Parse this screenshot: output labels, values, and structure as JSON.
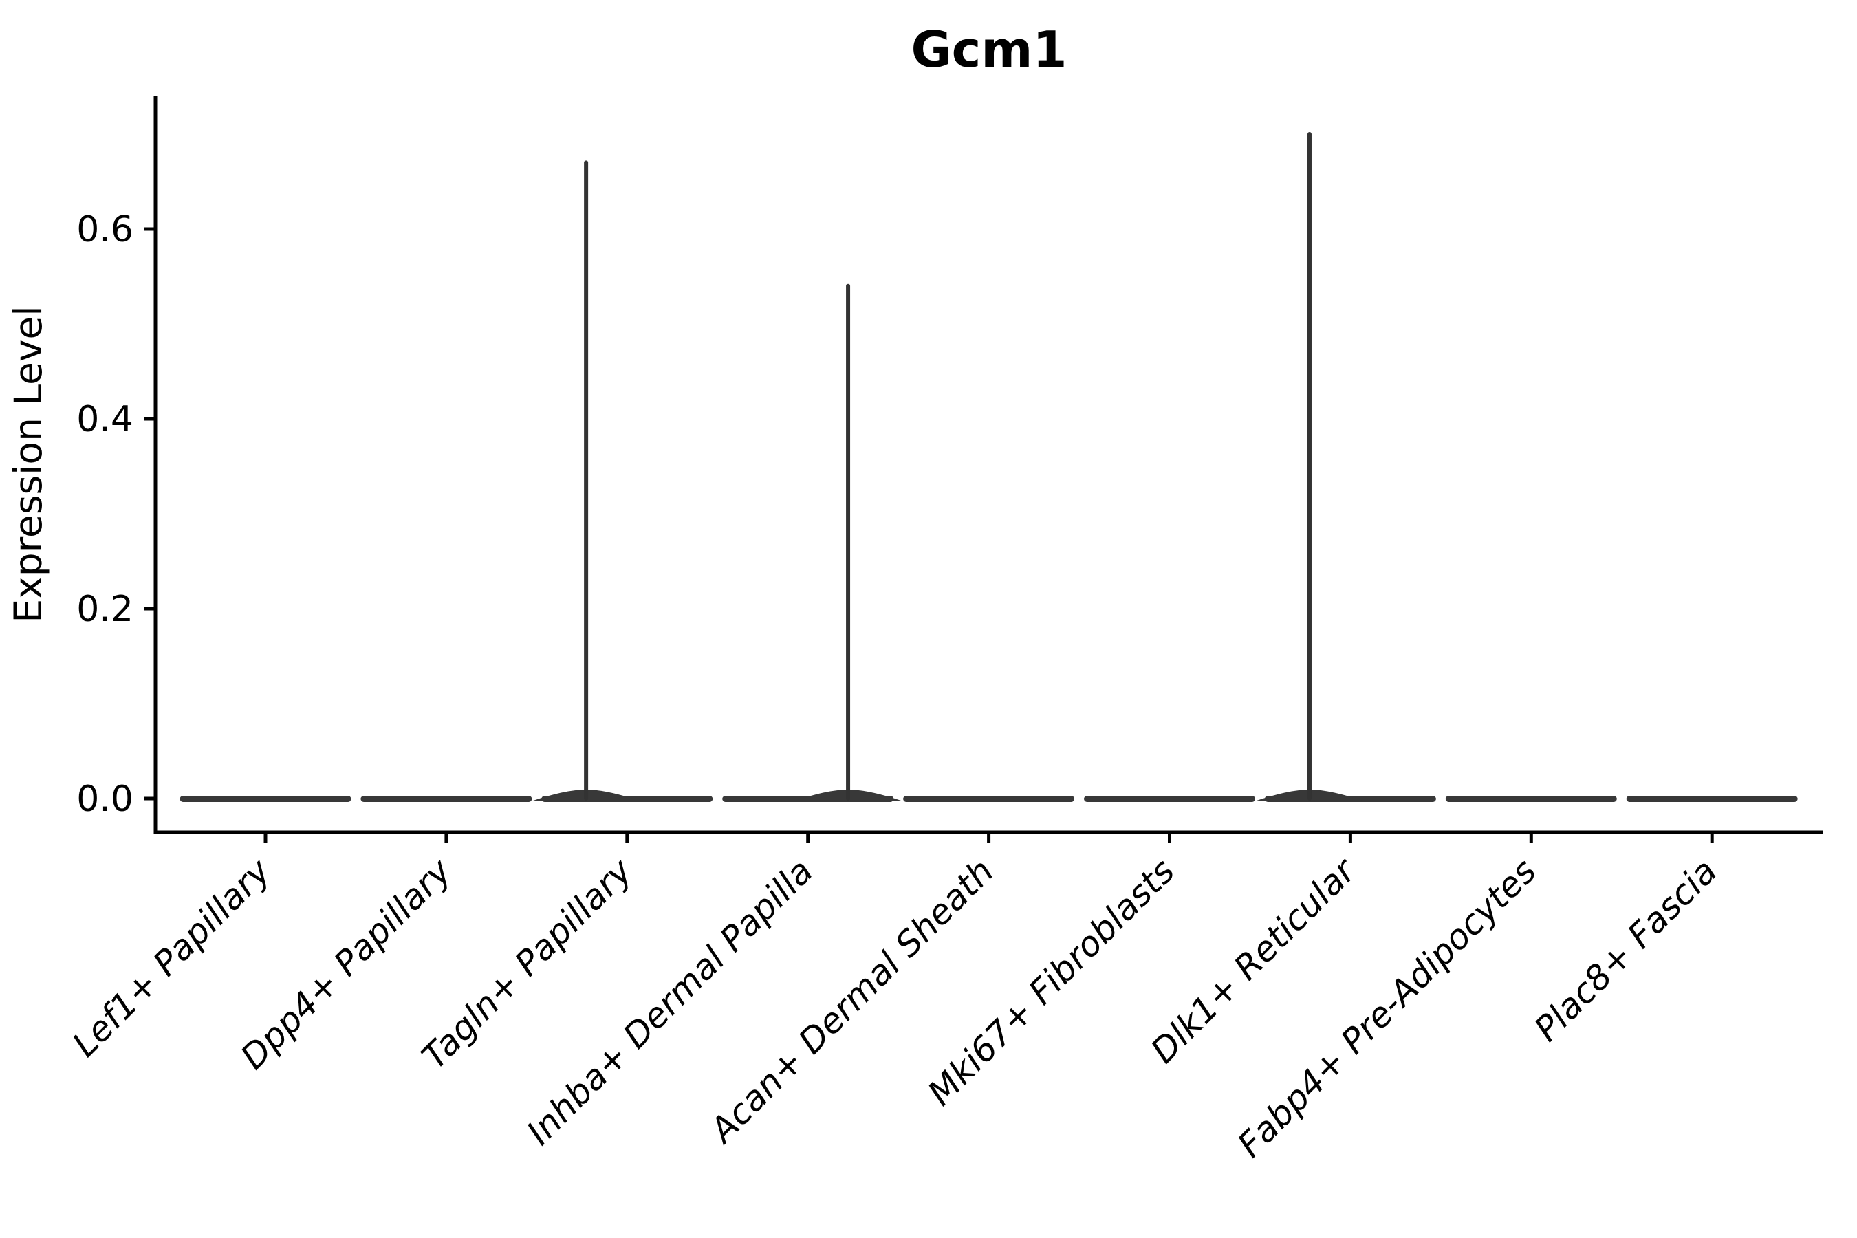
{
  "title": "Gcm1",
  "axes": {
    "ylabel": "Expression Level",
    "xlabel": "",
    "y_tick_labels": [
      "0.0",
      "0.2",
      "0.4",
      "0.6"
    ]
  },
  "colors": {
    "violin": "#383838",
    "spike": "#333333",
    "axis": "#000000",
    "background": "#ffffff"
  },
  "chart_data": {
    "type": "violin",
    "title": "Gcm1",
    "ylabel": "Expression Level",
    "xlabel": "",
    "grid": false,
    "legend": false,
    "ylim": [
      -0.035,
      0.74
    ],
    "y_ticks": [
      0.0,
      0.2,
      0.4,
      0.6
    ],
    "categories": [
      "Lef1+ Papillary",
      "Dpp4+ Papillary",
      "Tagln+ Papillary",
      "Inhba+ Dermal Papilla",
      "Acan+ Dermal Sheath",
      "Mki67+ Fibroblasts",
      "Dlk1+ Reticular",
      "Fabp4+ Pre-Adipocytes",
      "Plac8+ Fascia"
    ],
    "series": [
      {
        "name": "Lef1+ Papillary",
        "body": "flat-at-zero",
        "peak_value": 0.0,
        "spike": null
      },
      {
        "name": "Dpp4+ Papillary",
        "body": "flat-at-zero",
        "peak_value": 0.0,
        "spike": null
      },
      {
        "name": "Tagln+ Papillary",
        "body": "flat-at-zero",
        "peak_value": 0.67,
        "spike": {
          "value": 0.67,
          "x_offset_frac": -0.227
        }
      },
      {
        "name": "Inhba+ Dermal Papilla",
        "body": "flat-at-zero",
        "peak_value": 0.54,
        "spike": {
          "value": 0.54,
          "x_offset_frac": 0.222
        }
      },
      {
        "name": "Acan+ Dermal Sheath",
        "body": "flat-at-zero",
        "peak_value": 0.0,
        "spike": null
      },
      {
        "name": "Mki67+ Fibroblasts",
        "body": "flat-at-zero",
        "peak_value": 0.0,
        "spike": null
      },
      {
        "name": "Dlk1+ Reticular",
        "body": "flat-at-zero",
        "peak_value": 0.7,
        "spike": {
          "value": 0.7,
          "x_offset_frac": -0.226
        }
      },
      {
        "name": "Fabp4+ Pre-Adipocytes",
        "body": "flat-at-zero",
        "peak_value": 0.0,
        "spike": null
      },
      {
        "name": "Plac8+ Fascia",
        "body": "flat-at-zero",
        "peak_value": 0.0,
        "spike": null
      }
    ]
  }
}
